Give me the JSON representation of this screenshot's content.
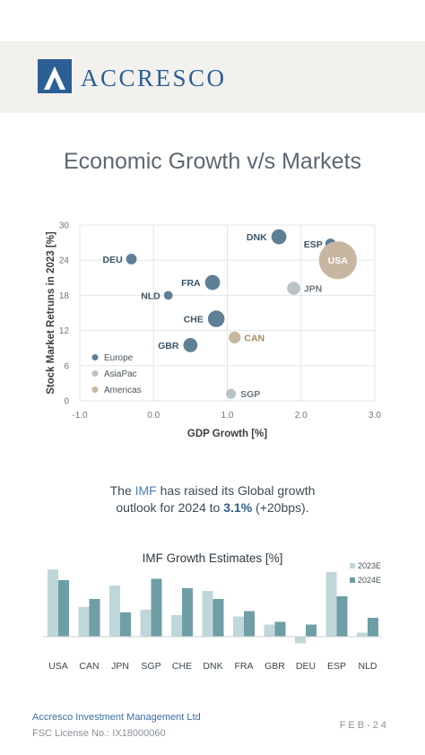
{
  "brand": {
    "name": "ACCRESCO",
    "color": "#2b5f96"
  },
  "page_title": "Economic Growth v/s Markets",
  "scatter": {
    "xlabel": "GDP Growth  [%]",
    "ylabel": "Stock Market Retruns in 2023  [%]",
    "xticks": [
      "-1.0",
      "0.0",
      "1.0",
      "2.0",
      "3.0"
    ],
    "yticks": [
      "0",
      "6",
      "12",
      "18",
      "24",
      "30"
    ],
    "legend": [
      {
        "label": "Europe",
        "color": "#5f7f96"
      },
      {
        "label": "AsiaPac",
        "color": "#b8c3c7"
      },
      {
        "label": "Americas",
        "color": "#c8b7a0"
      }
    ]
  },
  "note": {
    "part1": "The ",
    "imf": "IMF",
    "part2": " has raised its Global growth",
    "part3": "outlook for 2024 to ",
    "value": "3.1%",
    "part4": " (+20bps)."
  },
  "bar_chart": {
    "title": "IMF Growth Estimates [%]",
    "legend": [
      "2023E",
      "2024E"
    ]
  },
  "chart_data": [
    {
      "type": "scatter",
      "title": "",
      "xlabel": "GDP Growth  [%]",
      "ylabel": "Stock Market Retruns in 2023  [%]",
      "xlim": [
        -1.0,
        3.0
      ],
      "ylim": [
        0,
        30
      ],
      "grid": true,
      "legend_position": "bottom-left",
      "series": [
        {
          "name": "Europe",
          "color": "#5f7f96",
          "points": [
            {
              "label": "DNK",
              "x": 1.7,
              "y": 28.0,
              "size": 3
            },
            {
              "label": "ESP",
              "x": 2.4,
              "y": 26.8,
              "size": 1
            },
            {
              "label": "DEU",
              "x": -0.3,
              "y": 24.2,
              "size": 1
            },
            {
              "label": "FRA",
              "x": 0.8,
              "y": 20.2,
              "size": 3
            },
            {
              "label": "NLD",
              "x": 0.2,
              "y": 18.0,
              "size": 0.5
            },
            {
              "label": "CHE",
              "x": 0.85,
              "y": 14.0,
              "size": 4
            },
            {
              "label": "GBR",
              "x": 0.5,
              "y": 9.5,
              "size": 2.5
            }
          ]
        },
        {
          "name": "AsiaPac",
          "color": "#b8c3c7",
          "points": [
            {
              "label": "JPN",
              "x": 1.9,
              "y": 19.2,
              "size": 2
            },
            {
              "label": "SGP",
              "x": 1.05,
              "y": 1.2,
              "size": 0.8
            }
          ]
        },
        {
          "name": "Americas",
          "color": "#c8b7a0",
          "points": [
            {
              "label": "USA",
              "x": 2.5,
              "y": 24.0,
              "size": 30
            },
            {
              "label": "CAN",
              "x": 1.1,
              "y": 10.8,
              "size": 1.5
            }
          ]
        }
      ]
    },
    {
      "type": "bar",
      "title": "IMF Growth Estimates [%]",
      "categories": [
        "USA",
        "CAN",
        "JPN",
        "SGP",
        "CHE",
        "DNK",
        "FRA",
        "GBR",
        "DEU",
        "ESP",
        "NLD"
      ],
      "legend_position": "top-right",
      "series": [
        {
          "name": "2023E",
          "color": "#c0d7da",
          "values": [
            2.5,
            1.1,
            1.9,
            1.0,
            0.8,
            1.7,
            0.75,
            0.45,
            -0.25,
            2.4,
            0.15
          ]
        },
        {
          "name": "2024E",
          "color": "#6e9ea6",
          "values": [
            2.1,
            1.4,
            0.9,
            2.15,
            1.8,
            1.4,
            0.95,
            0.55,
            0.45,
            1.5,
            0.7
          ]
        }
      ]
    }
  ]
}
